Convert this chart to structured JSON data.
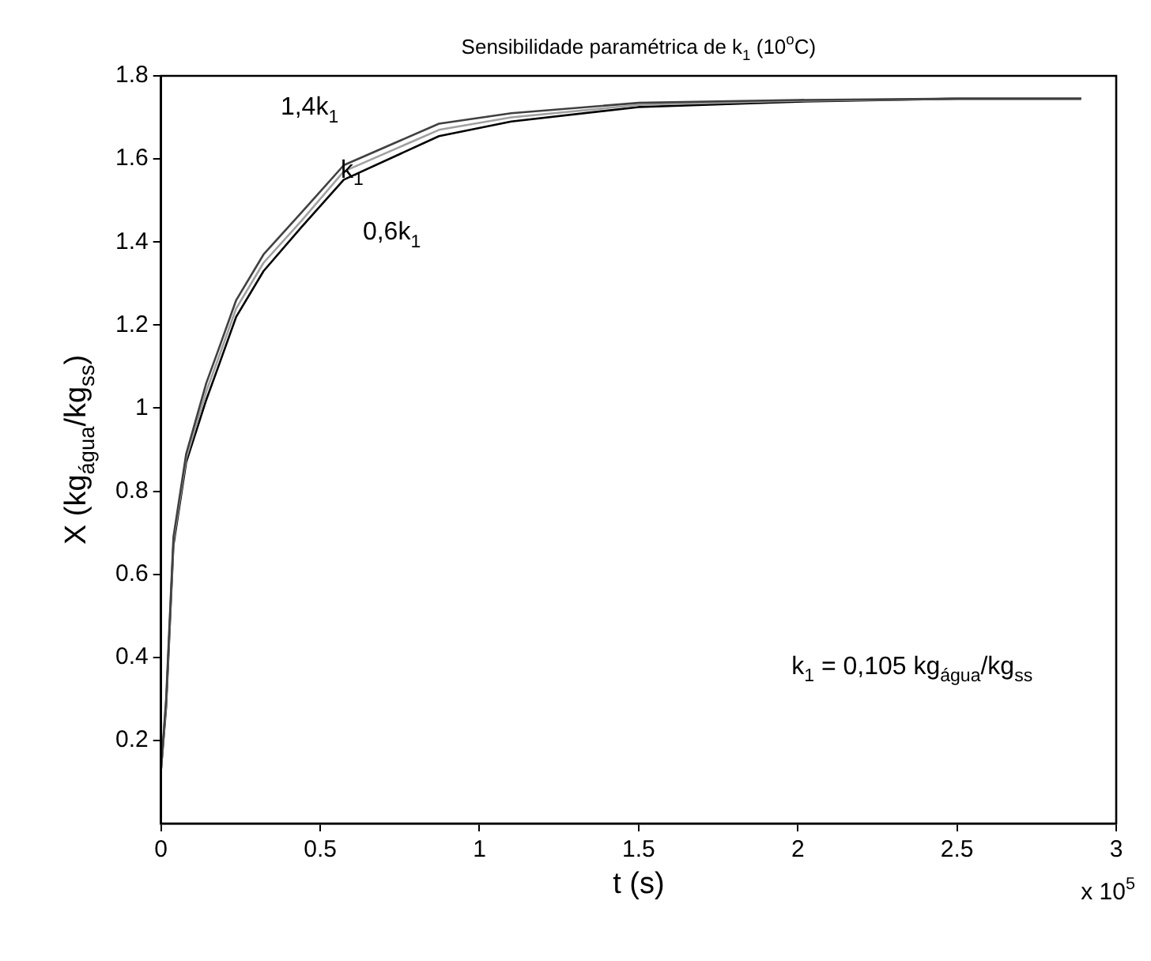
{
  "chart_data": {
    "type": "line",
    "title": "Sensibilidade paramétrica de k$_{1}$ (10$^{o}$C)",
    "xlabel": "t (s)",
    "ylabel": "X (kg$_{água}$/kg$_{ss}$)",
    "annotations": [
      "k$_{1}$ = 0,105 kg$_{água}$/kg$_{ss}$",
      "x 10$^{5}$"
    ],
    "x": [
      0,
      0.016,
      0.039,
      0.079,
      0.142,
      0.18,
      0.236,
      0.322,
      0.44,
      0.574,
      0.873,
      1.1,
      1.5,
      2.0,
      2.5,
      2.89
    ],
    "series": [
      {
        "name": "1,4k$_{1}$",
        "color": "#404040",
        "values": [
          0.13,
          0.3,
          0.69,
          0.89,
          1.06,
          1.14,
          1.26,
          1.37,
          1.47,
          1.585,
          1.685,
          1.71,
          1.735,
          1.742,
          1.745,
          1.745
        ]
      },
      {
        "name": "k$_{1}$",
        "color": "#a0a0a0",
        "values": [
          0.13,
          0.29,
          0.68,
          0.88,
          1.04,
          1.12,
          1.24,
          1.35,
          1.45,
          1.57,
          1.67,
          1.7,
          1.73,
          1.74,
          1.745,
          1.745
        ]
      },
      {
        "name": "0,6k$_{1}$",
        "color": "#000000",
        "values": [
          0.13,
          0.28,
          0.67,
          0.87,
          1.02,
          1.1,
          1.22,
          1.33,
          1.435,
          1.55,
          1.655,
          1.69,
          1.725,
          1.738,
          1.745,
          1.745
        ]
      }
    ],
    "xlim": [
      0,
      3
    ],
    "xticks": [
      0,
      0.5,
      1,
      1.5,
      2,
      2.5,
      3
    ],
    "ylim": [
      0,
      1.8
    ],
    "yticks": [
      0.2,
      0.4,
      0.6,
      0.8,
      1,
      1.2,
      1.4,
      1.6,
      1.8
    ],
    "grid": false,
    "legend": false,
    "marker": "none",
    "line_style": "solid"
  }
}
